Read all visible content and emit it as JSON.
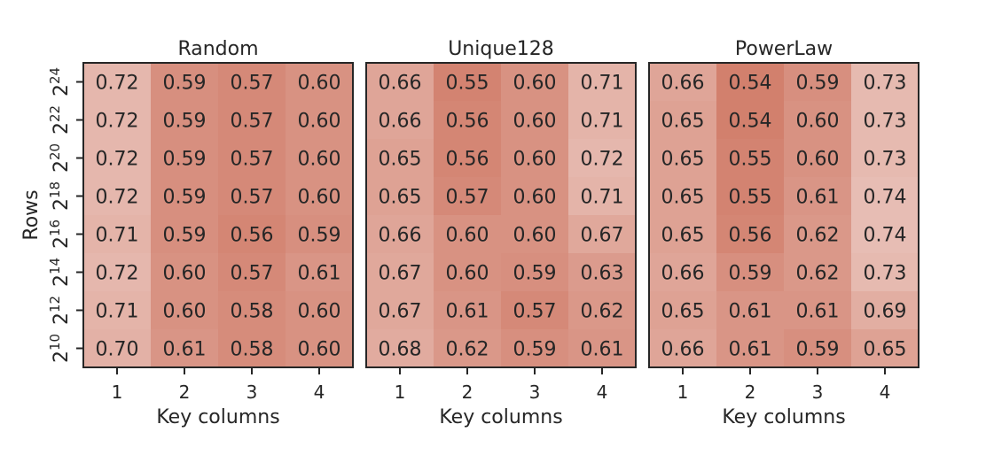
{
  "chart_data": [
    {
      "type": "heatmap",
      "title": "Random",
      "xlabel": "Key columns",
      "ylabel": "Rows",
      "x_categories": [
        "1",
        "2",
        "3",
        "4"
      ],
      "y_categories": [
        {
          "base": "2",
          "exp": "24"
        },
        {
          "base": "2",
          "exp": "22"
        },
        {
          "base": "2",
          "exp": "20"
        },
        {
          "base": "2",
          "exp": "18"
        },
        {
          "base": "2",
          "exp": "16"
        },
        {
          "base": "2",
          "exp": "14"
        },
        {
          "base": "2",
          "exp": "12"
        },
        {
          "base": "2",
          "exp": "10"
        }
      ],
      "values": [
        [
          "0.72",
          "0.59",
          "0.57",
          "0.60"
        ],
        [
          "0.72",
          "0.59",
          "0.57",
          "0.60"
        ],
        [
          "0.72",
          "0.59",
          "0.57",
          "0.60"
        ],
        [
          "0.72",
          "0.59",
          "0.57",
          "0.60"
        ],
        [
          "0.71",
          "0.59",
          "0.56",
          "0.59"
        ],
        [
          "0.72",
          "0.60",
          "0.57",
          "0.61"
        ],
        [
          "0.71",
          "0.60",
          "0.58",
          "0.60"
        ],
        [
          "0.70",
          "0.61",
          "0.58",
          "0.60"
        ]
      ]
    },
    {
      "type": "heatmap",
      "title": "Unique128",
      "xlabel": "Key columns",
      "ylabel": "",
      "x_categories": [
        "1",
        "2",
        "3",
        "4"
      ],
      "y_categories": [],
      "values": [
        [
          "0.66",
          "0.55",
          "0.60",
          "0.71"
        ],
        [
          "0.66",
          "0.56",
          "0.60",
          "0.71"
        ],
        [
          "0.65",
          "0.56",
          "0.60",
          "0.72"
        ],
        [
          "0.65",
          "0.57",
          "0.60",
          "0.71"
        ],
        [
          "0.66",
          "0.60",
          "0.60",
          "0.67"
        ],
        [
          "0.67",
          "0.60",
          "0.59",
          "0.63"
        ],
        [
          "0.67",
          "0.61",
          "0.57",
          "0.62"
        ],
        [
          "0.68",
          "0.62",
          "0.59",
          "0.61"
        ]
      ]
    },
    {
      "type": "heatmap",
      "title": "PowerLaw",
      "xlabel": "Key columns",
      "ylabel": "",
      "x_categories": [
        "1",
        "2",
        "3",
        "4"
      ],
      "y_categories": [],
      "values": [
        [
          "0.66",
          "0.54",
          "0.59",
          "0.73"
        ],
        [
          "0.65",
          "0.54",
          "0.60",
          "0.73"
        ],
        [
          "0.65",
          "0.55",
          "0.60",
          "0.73"
        ],
        [
          "0.65",
          "0.55",
          "0.61",
          "0.74"
        ],
        [
          "0.65",
          "0.56",
          "0.62",
          "0.74"
        ],
        [
          "0.66",
          "0.59",
          "0.62",
          "0.73"
        ],
        [
          "0.65",
          "0.61",
          "0.61",
          "0.69"
        ],
        [
          "0.66",
          "0.61",
          "0.59",
          "0.65"
        ]
      ]
    }
  ],
  "colors": {
    "low": "#d2806d",
    "high": "#e7bdb4",
    "text": "#262626",
    "frame": "#262626"
  }
}
